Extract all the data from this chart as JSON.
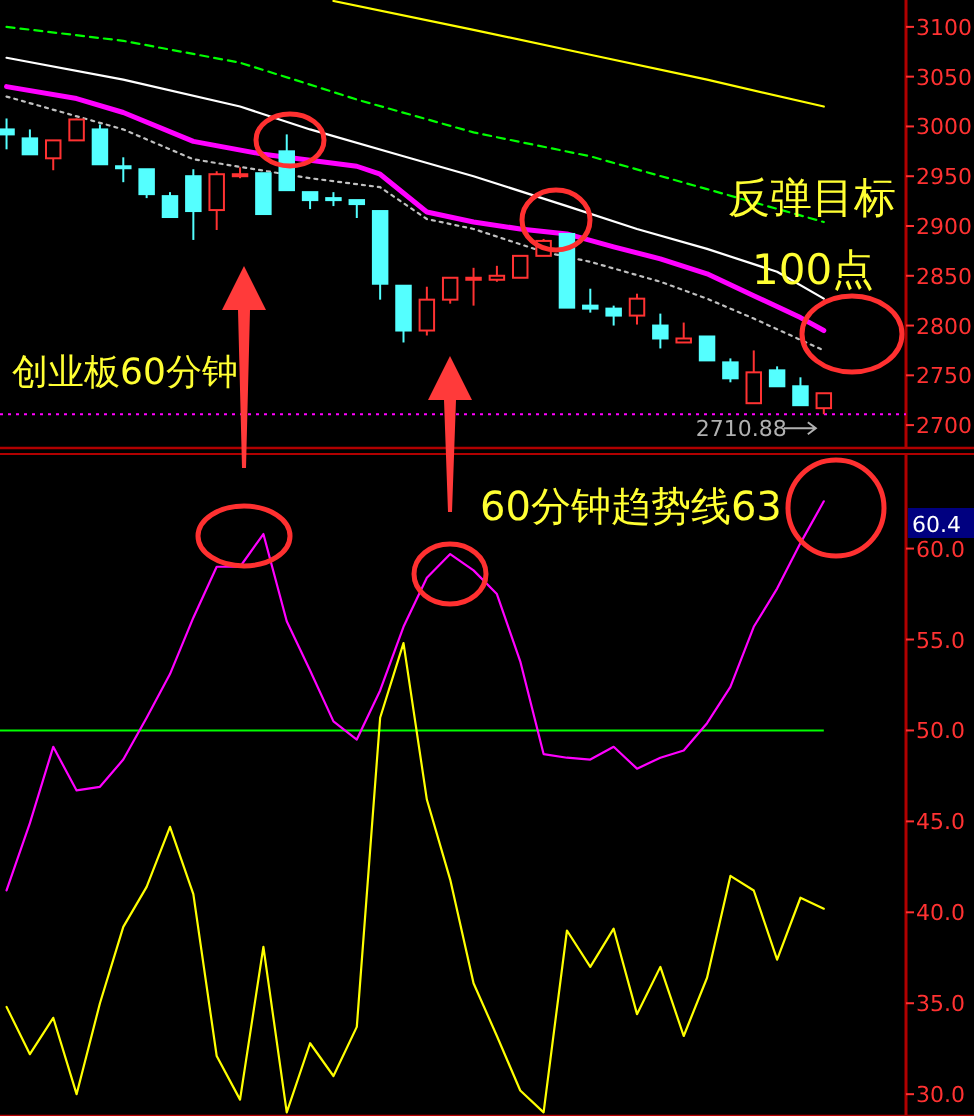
{
  "chart_data": [
    {
      "type": "candlestick",
      "categories": [
        null,
        null,
        null,
        null,
        null,
        null,
        null,
        null,
        null,
        null,
        null,
        null,
        null,
        null,
        null,
        null,
        null,
        null,
        null,
        null,
        null,
        null,
        null,
        null,
        null,
        null,
        null,
        null,
        null,
        null,
        null,
        null,
        null,
        null,
        null,
        null
      ],
      "ohlc": [
        [
          2997,
          3008,
          2977,
          2992
        ],
        [
          2988,
          2997,
          2972,
          2972
        ],
        [
          2968,
          2986,
          2956,
          2986
        ],
        [
          2986,
          3008,
          2986,
          3007
        ],
        [
          2997,
          3002,
          2962,
          2962
        ],
        [
          2960,
          2969,
          2944,
          2958
        ],
        [
          2957,
          2957,
          2928,
          2932
        ],
        [
          2930,
          2934,
          2909,
          2909
        ],
        [
          2950,
          2957,
          2886,
          2915
        ],
        [
          2916,
          2955,
          2896,
          2952
        ],
        [
          2950,
          2959,
          2948,
          2952
        ],
        [
          2953,
          2953,
          2912,
          2912
        ],
        [
          2975,
          2992,
          2936,
          2936
        ],
        [
          2934,
          2934,
          2917,
          2926
        ],
        [
          2928,
          2934,
          2920,
          2926
        ],
        [
          2926,
          2926,
          2908,
          2922
        ],
        [
          2915,
          2915,
          2826,
          2842
        ],
        [
          2840,
          2840,
          2783,
          2795
        ],
        [
          2795,
          2839,
          2790,
          2826
        ],
        [
          2826,
          2848,
          2822,
          2848
        ],
        [
          2846,
          2858,
          2820,
          2848
        ],
        [
          2846,
          2860,
          2844,
          2850
        ],
        [
          2848,
          2870,
          2848,
          2870
        ],
        [
          2870,
          2887,
          2870,
          2885
        ],
        [
          2892,
          2892,
          2818,
          2818
        ],
        [
          2820,
          2837,
          2813,
          2817
        ],
        [
          2817,
          2820,
          2800,
          2810
        ],
        [
          2810,
          2832,
          2801,
          2827
        ],
        [
          2800,
          2812,
          2777,
          2787
        ],
        [
          2783,
          2803,
          2783,
          2787
        ],
        [
          2789,
          2789,
          2765,
          2765
        ],
        [
          2763,
          2767,
          2743,
          2747
        ],
        [
          2722,
          2775,
          2722,
          2753
        ],
        [
          2755,
          2759,
          2739,
          2739
        ],
        [
          2739,
          2748,
          2720,
          2720
        ],
        [
          2717,
          2732,
          2710.88,
          2732
        ]
      ],
      "colors": [
        "#54ffff",
        "#54ffff",
        "#ff3232",
        "#ff3232",
        "#54ffff",
        "#54ffff",
        "#54ffff",
        "#54ffff",
        "#54ffff",
        "#ff3232",
        "#ff3232",
        "#54ffff",
        "#54ffff",
        "#54ffff",
        "#54ffff",
        "#54ffff",
        "#54ffff",
        "#54ffff",
        "#ff3232",
        "#ff3232",
        "#ff3232",
        "#ff3232",
        "#ff3232",
        "#ff3232",
        "#54ffff",
        "#54ffff",
        "#54ffff",
        "#ff3232",
        "#54ffff",
        "#ff3232",
        "#54ffff",
        "#54ffff",
        "#ff3232",
        "#54ffff",
        "#54ffff",
        "#ff3232"
      ],
      "series": [
        {
          "type": "line",
          "color": "#ffff00",
          "line_style": "solid",
          "values": [
            null,
            null,
            null,
            null,
            null,
            null,
            null,
            null,
            null,
            null,
            null,
            null,
            null,
            null,
            3126,
            null,
            null,
            null,
            null,
            null,
            3097,
            null,
            null,
            null,
            null,
            3072,
            null,
            null,
            null,
            null,
            3047,
            null,
            null,
            null,
            null,
            3020
          ]
        },
        {
          "type": "line",
          "color": "#00ff00",
          "line_style": "dashed",
          "values": [
            3100,
            null,
            null,
            null,
            null,
            3086,
            null,
            null,
            null,
            null,
            3064,
            null,
            null,
            3042,
            null,
            3027,
            null,
            null,
            null,
            null,
            2994,
            null,
            null,
            null,
            null,
            2970,
            null,
            null,
            null,
            null,
            2937,
            null,
            null,
            null,
            null,
            2904
          ]
        },
        {
          "type": "line",
          "color": "#ffffff",
          "line_style": "solid",
          "values": [
            3069,
            null,
            null,
            null,
            null,
            3047,
            null,
            null,
            null,
            null,
            3020,
            null,
            null,
            2997,
            null,
            null,
            null,
            2970,
            null,
            null,
            2950,
            null,
            null,
            null,
            2920,
            null,
            null,
            2897,
            null,
            null,
            2877,
            null,
            null,
            2854,
            null,
            2827
          ]
        },
        {
          "type": "line",
          "color": "#ff00ff",
          "line_style": "solid",
          "values": [
            3040,
            null,
            null,
            3028,
            null,
            3014,
            null,
            null,
            2985,
            null,
            null,
            2972,
            null,
            2966,
            null,
            2960,
            2952,
            null,
            2914,
            null,
            2904,
            null,
            2897,
            null,
            2892,
            null,
            2879,
            null,
            2867,
            null,
            2852,
            null,
            2830,
            null,
            2808,
            2795
          ]
        },
        {
          "type": "line",
          "color": "#c0c0c0",
          "line_style": "dotted",
          "values": [
            3030,
            null,
            null,
            null,
            null,
            2997,
            null,
            null,
            2967,
            null,
            null,
            null,
            null,
            2948,
            null,
            null,
            2939,
            null,
            2907,
            null,
            2897,
            null,
            null,
            2874,
            null,
            2864,
            null,
            null,
            2844,
            null,
            2827,
            null,
            2807,
            null,
            null,
            2775
          ]
        }
      ],
      "ylim": [
        2677,
        3127
      ],
      "yticks": [
        2700,
        2750,
        2800,
        2850,
        2900,
        2950,
        3000,
        3050,
        3100
      ],
      "tick_labels": "y",
      "grid": false,
      "ref_lines": [
        {
          "axis": "y",
          "value": 2710.88,
          "label": "2710.88",
          "color": "#ff00ff",
          "line_style": "dotted"
        }
      ],
      "annotations": [
        "创业板60分钟",
        "反弹目标",
        "100点"
      ]
    },
    {
      "type": "line",
      "categories": [
        null,
        null,
        null,
        null,
        null,
        null,
        null,
        null,
        null,
        null,
        null,
        null,
        null,
        null,
        null,
        null,
        null,
        null,
        null,
        null,
        null,
        null,
        null,
        null,
        null,
        null,
        null,
        null,
        null,
        null,
        null,
        null,
        null,
        null,
        null,
        null
      ],
      "series": [
        {
          "color": "#ff00ff",
          "values": [
            41.2,
            44.9,
            49.1,
            46.7,
            46.9,
            48.4,
            50.7,
            53.1,
            56.2,
            59.0,
            59.0,
            60.8,
            56.0,
            53.3,
            50.5,
            49.5,
            52.2,
            55.7,
            58.4,
            59.7,
            58.8,
            57.5,
            53.8,
            48.7,
            48.5,
            48.4,
            49.1,
            47.9,
            48.5,
            48.9,
            50.4,
            52.4,
            55.7,
            57.8,
            60.3,
            62.6
          ]
        },
        {
          "color": "#ffff00",
          "values": [
            34.8,
            32.2,
            34.2,
            30.0,
            35.0,
            39.2,
            41.4,
            44.7,
            41.0,
            32.1,
            29.7,
            38.1,
            29.0,
            32.8,
            31.0,
            33.7,
            50.7,
            54.8,
            46.2,
            41.8,
            36.1,
            33.2,
            30.2,
            29.0,
            39.0,
            37.0,
            39.1,
            34.4,
            37.0,
            33.2,
            36.4,
            42.0,
            41.2,
            37.4,
            40.8,
            40.2
          ]
        }
      ],
      "ylim": [
        28.8,
        65.2
      ],
      "yticks": [
        {
          "value": 30,
          "label": "30.0"
        },
        {
          "value": 35,
          "label": "35.0"
        },
        {
          "value": 40,
          "label": "40.0"
        },
        {
          "value": 45,
          "label": "45.0"
        },
        {
          "value": 50,
          "label": "50.0"
        },
        {
          "value": 55,
          "label": "55.0"
        },
        {
          "value": 60,
          "label": "60.0"
        }
      ],
      "tick_labels": "y",
      "grid": false,
      "ref_lines": [
        {
          "axis": "y",
          "value": 50,
          "color": "#00ff00",
          "line_style": "solid"
        }
      ],
      "annotations": [
        "60分钟趋势线63",
        "60.4"
      ]
    }
  ]
}
